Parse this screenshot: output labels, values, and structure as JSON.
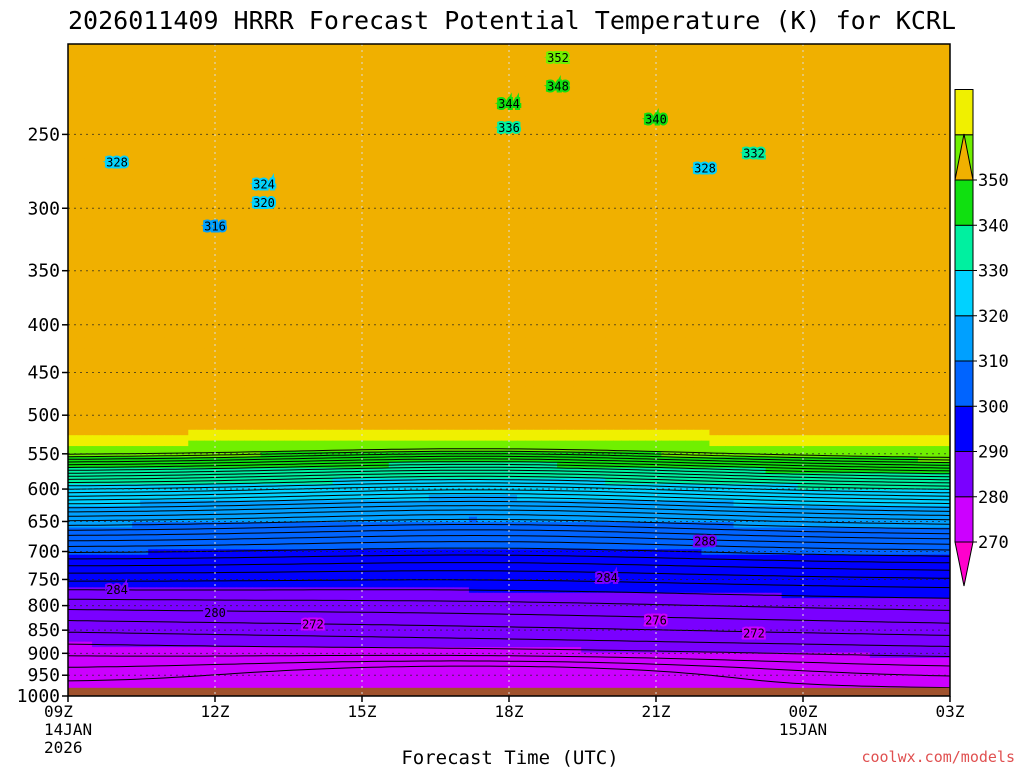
{
  "chart_data": {
    "type": "contour",
    "title": "2026011409 HRRR Forecast Potential Temperature (K) for KCRL",
    "xlabel": "Forecast Time (UTC)",
    "ylabel": "",
    "y_ticks": [
      250,
      300,
      350,
      400,
      450,
      500,
      550,
      600,
      650,
      700,
      750,
      800,
      850,
      900,
      950,
      1000
    ],
    "y_tick_labels": [
      "250",
      "300",
      "350",
      "400",
      "450",
      "500",
      "550",
      "600",
      "650",
      "700",
      "750",
      "800",
      "850",
      "900",
      "950",
      "1000"
    ],
    "y_range": [
      200,
      1000
    ],
    "x_hours": [
      0,
      3,
      6,
      9,
      12,
      15,
      18
    ],
    "x_tick_labels": [
      [
        "09Z",
        "14JAN",
        "2026"
      ],
      [
        "12Z"
      ],
      [
        "15Z"
      ],
      [
        "18Z"
      ],
      [
        "21Z"
      ],
      [
        "00Z",
        "15JAN"
      ],
      [
        "03Z"
      ]
    ],
    "x_range": [
      0,
      18
    ],
    "grid": "dotted",
    "colorbar": {
      "labels": [
        "350",
        "340",
        "330",
        "320",
        "310",
        "300",
        "290",
        "280",
        "270"
      ],
      "levels": [
        270,
        280,
        290,
        300,
        310,
        320,
        330,
        340,
        350
      ],
      "colors": [
        "#ff00cc",
        "#cc00ff",
        "#7a00ff",
        "#0000ff",
        "#0064ff",
        "#00a0ff",
        "#00d2ff",
        "#00f0a0",
        "#10e010",
        "#70f000",
        "#f0f000",
        "#f0b000"
      ]
    },
    "contour_labels": [
      {
        "text": "352",
        "hour": 10.0,
        "p": 207
      },
      {
        "text": "348",
        "hour": 10.0,
        "p": 222
      },
      {
        "text": "344",
        "hour": 9.0,
        "p": 232
      },
      {
        "text": "340",
        "hour": 12.0,
        "p": 241
      },
      {
        "text": "336",
        "hour": 9.0,
        "p": 246
      },
      {
        "text": "332",
        "hour": 14.0,
        "p": 262
      },
      {
        "text": "328",
        "hour": 1.0,
        "p": 268
      },
      {
        "text": "328",
        "hour": 13.0,
        "p": 272
      },
      {
        "text": "324",
        "hour": 4.0,
        "p": 283
      },
      {
        "text": "320",
        "hour": 4.0,
        "p": 296
      },
      {
        "text": "316",
        "hour": 3.0,
        "p": 314
      },
      {
        "text": "288",
        "hour": 13.0,
        "p": 683
      },
      {
        "text": "284",
        "hour": 11.0,
        "p": 747
      },
      {
        "text": "284",
        "hour": 1.0,
        "p": 770
      },
      {
        "text": "280",
        "hour": 3.0,
        "p": 815
      },
      {
        "text": "276",
        "hour": 12.0,
        "p": 830
      },
      {
        "text": "272",
        "hour": 5.0,
        "p": 838
      },
      {
        "text": "272",
        "hour": 14.0,
        "p": 857
      }
    ],
    "ground_color": "#a0522d",
    "surface_pressure": 980
  },
  "credit": "coolwx.com/models"
}
